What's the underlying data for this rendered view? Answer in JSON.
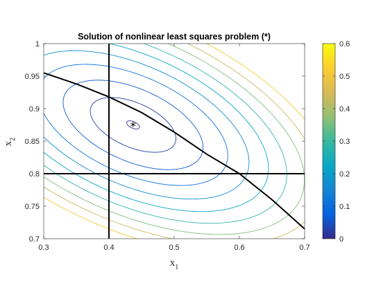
{
  "chart_data": {
    "type": "contour",
    "title": "Solution of nonlinear least squares problem (*)",
    "xlabel": {
      "base": "x",
      "sub": "1"
    },
    "ylabel": {
      "base": "x",
      "sub": "2"
    },
    "xlim": [
      0.3,
      0.7
    ],
    "ylim": [
      0.7,
      1.0
    ],
    "xticks": [
      0.3,
      0.4,
      0.5,
      0.6,
      0.7
    ],
    "xtick_labels": [
      "0.3",
      "0.4",
      "0.5",
      "0.6",
      "0.7"
    ],
    "yticks": [
      0.7,
      0.75,
      0.8,
      0.85,
      0.9,
      0.95,
      1.0
    ],
    "ytick_labels": [
      "0.7",
      "0.75",
      "0.8",
      "0.85",
      "0.9",
      "0.95",
      "1"
    ],
    "minimum": {
      "x": 0.437,
      "y": 0.875,
      "marker": "*"
    },
    "contour_levels": [
      0.0005,
      0.0225,
      0.06,
      0.11,
      0.165,
      0.225,
      0.29,
      0.36,
      0.43,
      0.51
    ],
    "quadratic_form": {
      "a": 7.0,
      "b": 11.0,
      "c": 17.0
    },
    "constraint_lines": [
      {
        "type": "vertical",
        "x": 0.4
      },
      {
        "type": "horizontal",
        "y": 0.8
      },
      {
        "type": "curve",
        "points": [
          [
            0.3,
            0.955
          ],
          [
            0.35,
            0.938
          ],
          [
            0.4,
            0.918
          ],
          [
            0.45,
            0.894
          ],
          [
            0.5,
            0.864
          ],
          [
            0.55,
            0.83
          ],
          [
            0.6,
            0.8
          ],
          [
            0.65,
            0.76
          ],
          [
            0.7,
            0.715
          ]
        ]
      }
    ],
    "colorbar": {
      "range": [
        0,
        0.6
      ],
      "ticks": [
        0,
        0.1,
        0.2,
        0.3,
        0.4,
        0.5,
        0.6
      ],
      "tick_labels": [
        "0",
        "0.1",
        "0.2",
        "0.3",
        "0.4",
        "0.5",
        "0.6"
      ],
      "colormap": "parula",
      "colors": [
        "#352a87",
        "#0363e1",
        "#1485d4",
        "#06a7c6",
        "#38b99e",
        "#92bf73",
        "#d9ba56",
        "#fcce2e",
        "#f9fb0e"
      ]
    },
    "grid": false,
    "legend": "none"
  }
}
